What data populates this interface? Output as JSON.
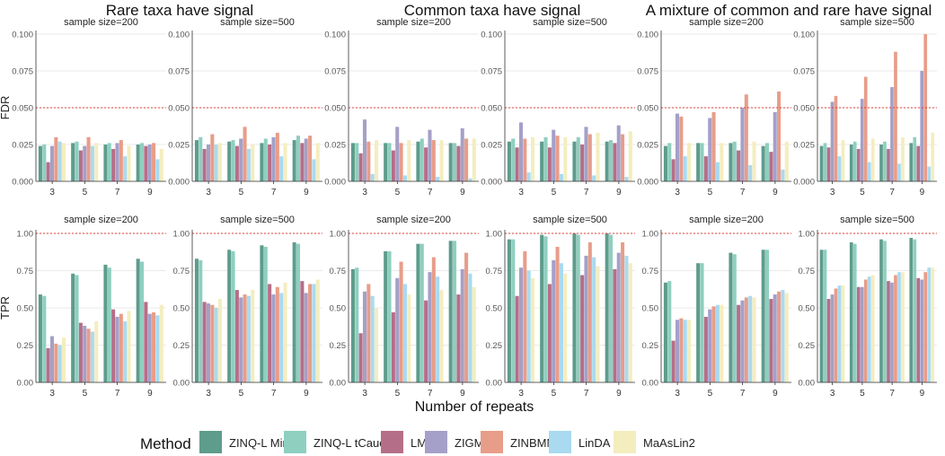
{
  "colors": {
    "ZINQ-L MinP": "#5E9C8B",
    "ZINQ-L tCauchy": "#8ECFC0",
    "LMM": "#B56E88",
    "ZIGMM": "#A4A0C9",
    "ZINBMM": "#E89D89",
    "LinDA": "#A9DAF0",
    "MaAsLin2": "#F4EDBE",
    "reference_line": "#E0403A",
    "axis": "#333333",
    "grid": "#E9E9E9"
  },
  "labels": {
    "group_titles": [
      "Rare taxa have signal",
      "Common taxa have signal",
      "A mixture of common and rare have signal"
    ],
    "panel_titles": [
      "sample size=200",
      "sample size=500"
    ],
    "row_labels": [
      "FDR",
      "TPR"
    ],
    "xlabel": "Number of repeats",
    "legend_title": "Method",
    "fdr_ticks": [
      "0.100",
      "0.075",
      "0.050",
      "0.025",
      "0.000"
    ],
    "tpr_ticks": [
      "1.00",
      "0.75",
      "0.50",
      "0.25",
      "0.00"
    ]
  },
  "chart_data": {
    "type": "bar",
    "categories": [
      "3",
      "5",
      "7",
      "9"
    ],
    "methods": [
      "ZINQ-L MinP",
      "ZINQ-L tCauchy",
      "LMM",
      "ZIGMM",
      "ZINBMM",
      "LinDA",
      "MaAsLin2"
    ],
    "fdr_ylim": [
      0,
      0.1
    ],
    "fdr_reference": 0.05,
    "tpr_ylim": [
      0,
      1
    ],
    "tpr_reference": 1.0,
    "panels": [
      {
        "group": 0,
        "sample_size": 200,
        "fdr": [
          [
            0.024,
            0.025,
            0.013,
            0.024,
            0.03,
            0.027,
            0.026
          ],
          [
            0.026,
            0.027,
            0.021,
            0.024,
            0.03,
            0.024,
            0.026
          ],
          [
            0.025,
            0.026,
            0.022,
            0.026,
            0.028,
            0.017,
            0.024
          ],
          [
            0.025,
            0.026,
            0.024,
            0.025,
            0.026,
            0.015,
            0.022
          ]
        ],
        "tpr": [
          [
            0.59,
            0.58,
            0.23,
            0.31,
            0.26,
            0.25,
            0.3
          ],
          [
            0.73,
            0.72,
            0.4,
            0.38,
            0.36,
            0.34,
            0.41
          ],
          [
            0.79,
            0.77,
            0.49,
            0.44,
            0.46,
            0.41,
            0.48
          ],
          [
            0.83,
            0.81,
            0.54,
            0.46,
            0.47,
            0.45,
            0.52
          ]
        ]
      },
      {
        "group": 0,
        "sample_size": 500,
        "fdr": [
          [
            0.028,
            0.03,
            0.022,
            0.025,
            0.032,
            0.025,
            0.026
          ],
          [
            0.027,
            0.028,
            0.024,
            0.029,
            0.037,
            0.022,
            0.025
          ],
          [
            0.026,
            0.029,
            0.025,
            0.03,
            0.033,
            0.017,
            0.026
          ],
          [
            0.028,
            0.031,
            0.026,
            0.029,
            0.031,
            0.015,
            0.026
          ]
        ],
        "tpr": [
          [
            0.83,
            0.82,
            0.54,
            0.53,
            0.52,
            0.5,
            0.56
          ],
          [
            0.89,
            0.88,
            0.62,
            0.57,
            0.59,
            0.58,
            0.62
          ],
          [
            0.92,
            0.91,
            0.66,
            0.59,
            0.64,
            0.6,
            0.67
          ],
          [
            0.94,
            0.93,
            0.68,
            0.6,
            0.66,
            0.66,
            0.69
          ]
        ]
      },
      {
        "group": 1,
        "sample_size": 200,
        "fdr": [
          [
            0.026,
            0.026,
            0.019,
            0.042,
            0.027,
            0.005,
            0.028
          ],
          [
            0.026,
            0.026,
            0.021,
            0.037,
            0.026,
            0.004,
            0.028
          ],
          [
            0.027,
            0.029,
            0.023,
            0.035,
            0.028,
            0.003,
            0.028
          ],
          [
            0.026,
            0.026,
            0.024,
            0.036,
            0.029,
            0.002,
            0.029
          ]
        ],
        "tpr": [
          [
            0.76,
            0.77,
            0.33,
            0.61,
            0.66,
            0.58,
            0.5
          ],
          [
            0.88,
            0.88,
            0.47,
            0.7,
            0.81,
            0.66,
            0.59
          ],
          [
            0.93,
            0.93,
            0.55,
            0.74,
            0.84,
            0.71,
            0.62
          ],
          [
            0.95,
            0.95,
            0.59,
            0.76,
            0.87,
            0.73,
            0.64
          ]
        ]
      },
      {
        "group": 1,
        "sample_size": 500,
        "fdr": [
          [
            0.027,
            0.029,
            0.023,
            0.04,
            0.029,
            0.006,
            0.03
          ],
          [
            0.027,
            0.03,
            0.023,
            0.035,
            0.031,
            0.005,
            0.03
          ],
          [
            0.027,
            0.03,
            0.025,
            0.037,
            0.032,
            0.004,
            0.033
          ],
          [
            0.027,
            0.028,
            0.026,
            0.038,
            0.032,
            0.003,
            0.034
          ]
        ],
        "tpr": [
          [
            0.96,
            0.96,
            0.58,
            0.77,
            0.88,
            0.75,
            0.7
          ],
          [
            0.99,
            0.98,
            0.66,
            0.82,
            0.91,
            0.8,
            0.73
          ],
          [
            1.0,
            0.99,
            0.72,
            0.85,
            0.94,
            0.84,
            0.78
          ],
          [
            1.0,
            0.99,
            0.76,
            0.87,
            0.94,
            0.85,
            0.8
          ]
        ]
      },
      {
        "group": 2,
        "sample_size": 200,
        "fdr": [
          [
            0.024,
            0.026,
            0.015,
            0.046,
            0.044,
            0.017,
            0.026
          ],
          [
            0.026,
            0.026,
            0.017,
            0.043,
            0.047,
            0.013,
            0.026
          ],
          [
            0.026,
            0.027,
            0.021,
            0.05,
            0.059,
            0.011,
            0.027
          ],
          [
            0.024,
            0.026,
            0.02,
            0.047,
            0.061,
            0.008,
            0.027
          ]
        ],
        "tpr": [
          [
            0.67,
            0.68,
            0.28,
            0.42,
            0.43,
            0.42,
            0.42
          ],
          [
            0.8,
            0.8,
            0.44,
            0.49,
            0.51,
            0.52,
            0.52
          ],
          [
            0.87,
            0.86,
            0.52,
            0.55,
            0.57,
            0.58,
            0.57
          ],
          [
            0.89,
            0.89,
            0.56,
            0.59,
            0.61,
            0.62,
            0.6
          ]
        ]
      },
      {
        "group": 2,
        "sample_size": 500,
        "fdr": [
          [
            0.024,
            0.026,
            0.023,
            0.054,
            0.058,
            0.017,
            0.028
          ],
          [
            0.025,
            0.027,
            0.022,
            0.056,
            0.071,
            0.013,
            0.029
          ],
          [
            0.025,
            0.027,
            0.022,
            0.064,
            0.088,
            0.012,
            0.03
          ],
          [
            0.026,
            0.03,
            0.024,
            0.075,
            0.1,
            0.01,
            0.033
          ]
        ],
        "tpr": [
          [
            0.89,
            0.89,
            0.56,
            0.59,
            0.63,
            0.65,
            0.65
          ],
          [
            0.94,
            0.93,
            0.64,
            0.64,
            0.69,
            0.71,
            0.72
          ],
          [
            0.96,
            0.95,
            0.68,
            0.67,
            0.72,
            0.74,
            0.74
          ],
          [
            0.97,
            0.96,
            0.7,
            0.69,
            0.74,
            0.77,
            0.77
          ]
        ]
      }
    ]
  }
}
